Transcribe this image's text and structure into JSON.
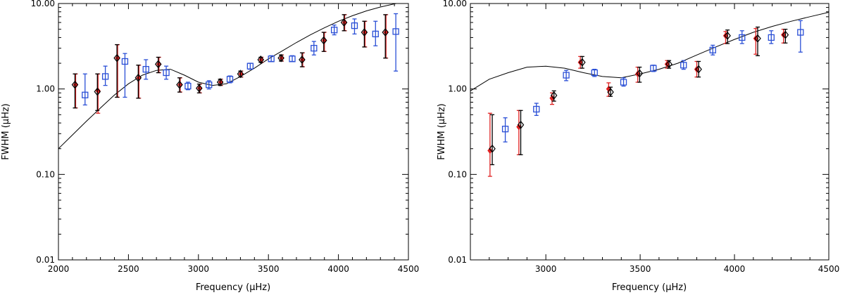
{
  "chart_data": [
    {
      "id": "left",
      "type": "scatter",
      "title": "",
      "xlabel": "Frequency (μHz)",
      "ylabel": "FWHM (μHz)",
      "x_range": [
        2000,
        4500
      ],
      "y_range": [
        0.01,
        10
      ],
      "y_scale": "log",
      "x_ticks": [
        2000,
        2500,
        3000,
        3500,
        4000,
        4500
      ],
      "x_tick_labels": [
        "2000",
        "2500",
        "3000",
        "3500",
        "4000",
        "4500"
      ],
      "y_ticks": [
        0.01,
        0.1,
        1,
        10
      ],
      "y_tick_labels": [
        "0.01",
        "0.10",
        "1.00",
        "10.00"
      ],
      "model_curve": {
        "name": "model",
        "color": "#000000",
        "x": [
          2000,
          2100,
          2200,
          2300,
          2400,
          2500,
          2600,
          2700,
          2800,
          2900,
          3000,
          3100,
          3200,
          3300,
          3400,
          3500,
          3600,
          3700,
          3800,
          3900,
          4000,
          4100,
          4200,
          4300,
          4400,
          4500
        ],
        "y": [
          0.2,
          0.29,
          0.42,
          0.6,
          0.85,
          1.15,
          1.45,
          1.65,
          1.7,
          1.45,
          1.2,
          1.1,
          1.15,
          1.4,
          1.75,
          2.25,
          2.8,
          3.5,
          4.3,
          5.2,
          6.2,
          7.2,
          8.2,
          9.1,
          9.9,
          10.6
        ]
      },
      "series": [
        {
          "name": "red points",
          "color": "#e02020",
          "marker": "filled-diamond",
          "x": [
            2123,
            2283,
            2423,
            2575,
            2718,
            2870,
            3010,
            3160,
            3305,
            3450,
            3595,
            3745,
            3900,
            4045,
            4190,
            4340
          ],
          "y": [
            1.12,
            0.95,
            2.3,
            1.35,
            1.95,
            1.12,
            1.02,
            1.2,
            1.5,
            2.2,
            2.3,
            2.2,
            3.7,
            6.0,
            4.6,
            4.6
          ],
          "y_low": [
            0.6,
            0.52,
            0.8,
            0.78,
            1.55,
            0.92,
            0.9,
            1.1,
            1.38,
            2.05,
            2.12,
            1.82,
            2.75,
            4.8,
            3.1,
            2.3
          ],
          "y_high": [
            1.5,
            1.5,
            3.3,
            1.9,
            2.35,
            1.35,
            1.14,
            1.3,
            1.62,
            2.35,
            2.5,
            2.65,
            4.6,
            7.4,
            6.2,
            7.4
          ]
        },
        {
          "name": "black points",
          "color": "#000000",
          "marker": "open-diamond",
          "x": [
            2118,
            2278,
            2418,
            2570,
            2713,
            2865,
            3005,
            3155,
            3300,
            3445,
            3590,
            3740,
            3895,
            4040,
            4185,
            4335
          ],
          "y": [
            1.12,
            0.93,
            2.3,
            1.35,
            1.95,
            1.12,
            1.02,
            1.2,
            1.5,
            2.2,
            2.3,
            2.2,
            3.7,
            6.0,
            4.6,
            4.6
          ],
          "y_low": [
            0.6,
            0.56,
            0.8,
            0.78,
            1.55,
            0.92,
            0.9,
            1.1,
            1.38,
            2.05,
            2.12,
            1.82,
            2.75,
            4.8,
            3.1,
            2.3
          ],
          "y_high": [
            1.5,
            1.5,
            3.3,
            1.9,
            2.35,
            1.35,
            1.14,
            1.3,
            1.62,
            2.35,
            2.5,
            2.65,
            4.6,
            7.4,
            6.2,
            7.4
          ]
        },
        {
          "name": "blue points",
          "color": "#2a4fd6",
          "marker": "open-square",
          "x": [
            2190,
            2335,
            2475,
            2625,
            2770,
            2925,
            3075,
            3225,
            3370,
            3520,
            3670,
            3825,
            3970,
            4115,
            4265,
            4410
          ],
          "y": [
            0.85,
            1.4,
            2.1,
            1.7,
            1.55,
            1.08,
            1.12,
            1.3,
            1.85,
            2.25,
            2.25,
            3.0,
            4.9,
            5.5,
            4.4,
            4.7
          ],
          "y_low": [
            0.65,
            1.1,
            0.8,
            1.3,
            1.3,
            0.98,
            1.0,
            1.18,
            1.7,
            2.1,
            2.1,
            2.5,
            4.3,
            4.4,
            3.2,
            1.62
          ],
          "y_high": [
            1.5,
            1.85,
            2.6,
            2.2,
            1.85,
            1.2,
            1.25,
            1.42,
            2.0,
            2.45,
            2.45,
            3.6,
            5.6,
            6.6,
            6.2,
            7.6
          ]
        }
      ]
    },
    {
      "id": "right",
      "type": "scatter",
      "title": "",
      "xlabel": "Frequency (μHz)",
      "ylabel": "FWHM (μHz)",
      "x_range": [
        2600,
        4500
      ],
      "y_range": [
        0.01,
        10
      ],
      "y_scale": "log",
      "x_ticks": [
        3000,
        3500,
        4000,
        4500
      ],
      "x_tick_labels": [
        "3000",
        "3500",
        "4000",
        "4500"
      ],
      "y_ticks": [
        0.01,
        0.1,
        1,
        10
      ],
      "y_tick_labels": [
        "0.01",
        "0.10",
        "1.00",
        "10.00"
      ],
      "model_curve": {
        "name": "model",
        "color": "#000000",
        "x": [
          2600,
          2700,
          2800,
          2900,
          3000,
          3100,
          3200,
          3300,
          3400,
          3500,
          3600,
          3700,
          3800,
          3900,
          4000,
          4100,
          4200,
          4300,
          4400,
          4500
        ],
        "y": [
          0.95,
          1.3,
          1.55,
          1.8,
          1.85,
          1.75,
          1.55,
          1.4,
          1.35,
          1.5,
          1.7,
          2.0,
          2.5,
          3.1,
          3.8,
          4.6,
          5.4,
          6.2,
          7.0,
          7.9
        ]
      },
      "series": [
        {
          "name": "red points",
          "color": "#e02020",
          "marker": "filled-diamond",
          "x": [
            2704,
            2857,
            3033,
            3183,
            3333,
            3487,
            3643,
            3800,
            3953,
            4113,
            4260
          ],
          "y": [
            0.19,
            0.36,
            0.78,
            2.05,
            1.0,
            1.5,
            1.95,
            1.7,
            4.2,
            3.9,
            4.3
          ],
          "y_low": [
            0.095,
            0.17,
            0.66,
            1.75,
            0.82,
            1.2,
            1.75,
            1.38,
            3.4,
            2.55,
            3.45
          ],
          "y_high": [
            0.52,
            0.56,
            0.9,
            2.4,
            1.18,
            1.8,
            2.15,
            2.1,
            4.7,
            5.1,
            5.0
          ]
        },
        {
          "name": "black points",
          "color": "#000000",
          "marker": "open-diamond",
          "x": [
            2716,
            2867,
            3043,
            3193,
            3343,
            3497,
            3653,
            3810,
            3963,
            4123,
            4270
          ],
          "y": [
            0.2,
            0.38,
            0.84,
            2.05,
            0.92,
            1.52,
            1.95,
            1.7,
            4.2,
            3.9,
            4.3
          ],
          "y_low": [
            0.13,
            0.17,
            0.72,
            1.75,
            0.82,
            1.2,
            1.75,
            1.38,
            3.4,
            2.45,
            3.45
          ],
          "y_high": [
            0.5,
            0.56,
            0.95,
            2.4,
            1.05,
            1.8,
            2.15,
            2.1,
            4.9,
            5.3,
            5.0
          ]
        },
        {
          "name": "blue points",
          "color": "#2a4fd6",
          "marker": "open-square",
          "x": [
            2785,
            2950,
            3108,
            3258,
            3412,
            3570,
            3730,
            3885,
            4040,
            4195,
            4350
          ],
          "y": [
            0.34,
            0.58,
            1.45,
            1.55,
            1.2,
            1.75,
            1.9,
            2.85,
            4.0,
            4.0,
            4.6
          ],
          "y_low": [
            0.24,
            0.49,
            1.25,
            1.4,
            1.08,
            1.6,
            1.7,
            2.5,
            3.4,
            3.4,
            2.7
          ],
          "y_high": [
            0.46,
            0.68,
            1.65,
            1.7,
            1.35,
            1.9,
            2.15,
            3.25,
            4.8,
            4.8,
            6.3
          ]
        }
      ]
    }
  ]
}
